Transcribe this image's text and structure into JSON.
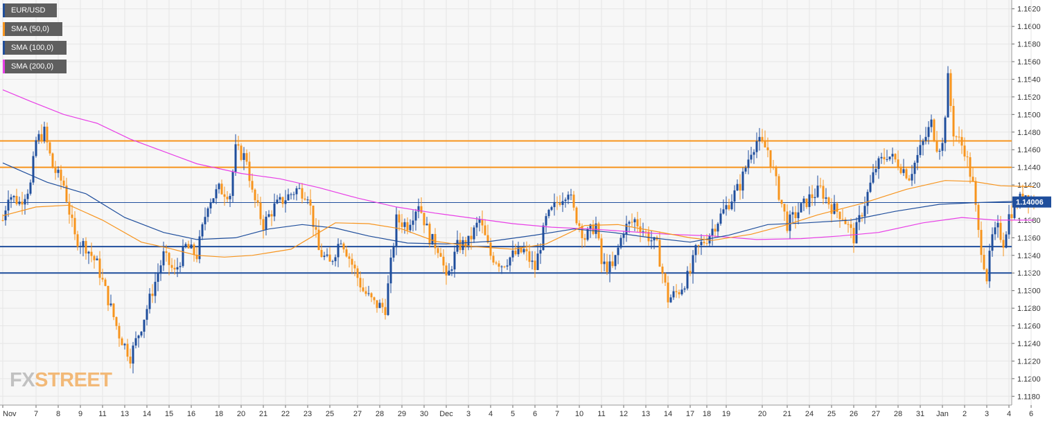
{
  "colors": {
    "bull": "#1f4e9c",
    "bear": "#f7941d",
    "sma50": "#f7941d",
    "sma100": "#1f4e9c",
    "sma200": "#e83ee6",
    "resistance": "#f7941d",
    "support": "#1f4e9c",
    "grid": "#e6e6e6",
    "background": "#f7f7f7",
    "price_label_bg": "#1f4e9c"
  },
  "legend": [
    {
      "label": "EUR/USD",
      "color": "#1f4e9c"
    },
    {
      "label": "SMA (50,0)",
      "color": "#f7941d"
    },
    {
      "label": "SMA (100,0)",
      "color": "#1f4e9c"
    },
    {
      "label": "SMA (200,0)",
      "color": "#e83ee6"
    }
  ],
  "watermark": {
    "fx": "FX",
    "street": "STREET"
  },
  "chart_data": {
    "type": "candlestick",
    "symbol": "EUR/USD",
    "title": "",
    "xlabel": "",
    "ylabel": "",
    "ylim": [
      1.117,
      1.163
    ],
    "y_ticks": [
      "1.1180",
      "1.1200",
      "1.1220",
      "1.1240",
      "1.1260",
      "1.1280",
      "1.1300",
      "1.1320",
      "1.1340",
      "1.1360",
      "1.1380",
      "1.1400",
      "1.1420",
      "1.1440",
      "1.1460",
      "1.1480",
      "1.1500",
      "1.1520",
      "1.1540",
      "1.1560",
      "1.1580",
      "1.1600",
      "1.1620"
    ],
    "x_ticks": [
      "Nov",
      "7",
      "8",
      "9",
      "11",
      "13",
      "14",
      "15",
      "16",
      "18",
      "20",
      "21",
      "22",
      "23",
      "25",
      "27",
      "28",
      "29",
      "30",
      "Dec",
      "3",
      "4",
      "5",
      "6",
      "7",
      "10",
      "11",
      "12",
      "13",
      "14",
      "17",
      "18",
      "19",
      "20",
      "21",
      "24",
      "25",
      "26",
      "27",
      "28",
      "31",
      "Jan",
      "2",
      "3",
      "4",
      "6"
    ],
    "x_tick_slots": [
      0,
      12,
      20,
      28,
      36,
      44,
      52,
      60,
      68,
      78,
      86,
      94,
      102,
      110,
      118,
      128,
      136,
      144,
      152,
      160,
      168,
      176,
      184,
      192,
      200,
      208,
      216,
      224,
      232,
      240,
      248,
      254,
      261,
      274,
      283,
      291,
      299,
      307,
      315,
      323,
      331,
      339,
      347,
      355,
      363,
      371
    ],
    "current_price": "1.14006",
    "current_price_value": 1.14006,
    "horizontal_levels": [
      {
        "kind": "resistance",
        "value": 1.147
      },
      {
        "kind": "resistance",
        "value": 1.144
      },
      {
        "kind": "current",
        "value": 1.14
      },
      {
        "kind": "support",
        "value": 1.135
      },
      {
        "kind": "support",
        "value": 1.132
      }
    ],
    "price_path": [
      [
        0,
        1.138
      ],
      [
        2,
        1.141
      ],
      [
        6,
        1.14
      ],
      [
        10,
        1.142
      ],
      [
        12,
        1.147
      ],
      [
        15,
        1.148
      ],
      [
        18,
        1.144
      ],
      [
        22,
        1.142
      ],
      [
        26,
        1.136
      ],
      [
        30,
        1.135
      ],
      [
        34,
        1.133
      ],
      [
        38,
        1.129
      ],
      [
        42,
        1.125
      ],
      [
        46,
        1.1225
      ],
      [
        50,
        1.126
      ],
      [
        54,
        1.13
      ],
      [
        58,
        1.134
      ],
      [
        62,
        1.132
      ],
      [
        66,
        1.135
      ],
      [
        70,
        1.134
      ],
      [
        74,
        1.14
      ],
      [
        78,
        1.1415
      ],
      [
        82,
        1.141
      ],
      [
        84,
        1.146
      ],
      [
        88,
        1.145
      ],
      [
        90,
        1.141
      ],
      [
        94,
        1.1375
      ],
      [
        98,
        1.1395
      ],
      [
        102,
        1.1405
      ],
      [
        106,
        1.1415
      ],
      [
        110,
        1.141
      ],
      [
        114,
        1.1345
      ],
      [
        118,
        1.133
      ],
      [
        122,
        1.136
      ],
      [
        126,
        1.133
      ],
      [
        130,
        1.13
      ],
      [
        134,
        1.1285
      ],
      [
        138,
        1.128
      ],
      [
        142,
        1.138
      ],
      [
        146,
        1.1375
      ],
      [
        150,
        1.14
      ],
      [
        154,
        1.136
      ],
      [
        158,
        1.1345
      ],
      [
        160,
        1.131
      ],
      [
        164,
        1.135
      ],
      [
        168,
        1.1355
      ],
      [
        172,
        1.138
      ],
      [
        176,
        1.134
      ],
      [
        180,
        1.133
      ],
      [
        184,
        1.134
      ],
      [
        188,
        1.1345
      ],
      [
        192,
        1.1325
      ],
      [
        196,
        1.138
      ],
      [
        200,
        1.14
      ],
      [
        204,
        1.1415
      ],
      [
        206,
        1.139
      ],
      [
        210,
        1.136
      ],
      [
        214,
        1.1375
      ],
      [
        216,
        1.133
      ],
      [
        220,
        1.1325
      ],
      [
        224,
        1.137
      ],
      [
        228,
        1.138
      ],
      [
        232,
        1.1365
      ],
      [
        236,
        1.135
      ],
      [
        240,
        1.129
      ],
      [
        244,
        1.13
      ],
      [
        248,
        1.132
      ],
      [
        250,
        1.1345
      ],
      [
        254,
        1.136
      ],
      [
        258,
        1.138
      ],
      [
        262,
        1.14
      ],
      [
        266,
        1.142
      ],
      [
        270,
        1.146
      ],
      [
        272,
        1.147
      ],
      [
        276,
        1.146
      ],
      [
        280,
        1.141
      ],
      [
        283,
        1.1375
      ],
      [
        287,
        1.139
      ],
      [
        291,
        1.1405
      ],
      [
        295,
        1.1415
      ],
      [
        299,
        1.1395
      ],
      [
        303,
        1.1385
      ],
      [
        307,
        1.136
      ],
      [
        311,
        1.14
      ],
      [
        315,
        1.144
      ],
      [
        319,
        1.1455
      ],
      [
        323,
        1.1445
      ],
      [
        327,
        1.143
      ],
      [
        331,
        1.146
      ],
      [
        335,
        1.149
      ],
      [
        337,
        1.1465
      ],
      [
        339,
        1.1465
      ],
      [
        341,
        1.154
      ],
      [
        343,
        1.148
      ],
      [
        347,
        1.146
      ],
      [
        350,
        1.142
      ],
      [
        352,
        1.1365
      ],
      [
        355,
        1.1315
      ],
      [
        357,
        1.136
      ],
      [
        359,
        1.137
      ],
      [
        361,
        1.1355
      ],
      [
        363,
        1.1385
      ],
      [
        366,
        1.14
      ],
      [
        369,
        1.141
      ],
      [
        372,
        1.14
      ]
    ],
    "sma50": [
      [
        0,
        1.1385
      ],
      [
        12,
        1.1395
      ],
      [
        24,
        1.1397
      ],
      [
        36,
        1.138
      ],
      [
        50,
        1.1355
      ],
      [
        60,
        1.1348
      ],
      [
        70,
        1.134
      ],
      [
        80,
        1.1338
      ],
      [
        90,
        1.134
      ],
      [
        104,
        1.1347
      ],
      [
        112,
        1.1362
      ],
      [
        120,
        1.1377
      ],
      [
        132,
        1.1376
      ],
      [
        144,
        1.137
      ],
      [
        156,
        1.1356
      ],
      [
        170,
        1.135
      ],
      [
        184,
        1.1347
      ],
      [
        196,
        1.1353
      ],
      [
        210,
        1.1374
      ],
      [
        222,
        1.1375
      ],
      [
        236,
        1.1367
      ],
      [
        248,
        1.136
      ],
      [
        256,
        1.1357
      ],
      [
        270,
        1.1364
      ],
      [
        282,
        1.1374
      ],
      [
        294,
        1.1386
      ],
      [
        310,
        1.1399
      ],
      [
        326,
        1.1415
      ],
      [
        340,
        1.1425
      ],
      [
        350,
        1.1424
      ],
      [
        360,
        1.1419
      ],
      [
        372,
        1.1418
      ]
    ],
    "sma100": [
      [
        0,
        1.1445
      ],
      [
        16,
        1.1423
      ],
      [
        30,
        1.141
      ],
      [
        44,
        1.1383
      ],
      [
        58,
        1.1366
      ],
      [
        70,
        1.1358
      ],
      [
        84,
        1.136
      ],
      [
        96,
        1.137
      ],
      [
        108,
        1.1375
      ],
      [
        120,
        1.1371
      ],
      [
        132,
        1.1362
      ],
      [
        146,
        1.1354
      ],
      [
        160,
        1.1353
      ],
      [
        176,
        1.1356
      ],
      [
        192,
        1.1363
      ],
      [
        206,
        1.137
      ],
      [
        220,
        1.1366
      ],
      [
        234,
        1.136
      ],
      [
        248,
        1.1355
      ],
      [
        262,
        1.1363
      ],
      [
        276,
        1.1375
      ],
      [
        290,
        1.1377
      ],
      [
        306,
        1.138
      ],
      [
        322,
        1.139
      ],
      [
        338,
        1.1398
      ],
      [
        352,
        1.14
      ],
      [
        372,
        1.1402
      ]
    ],
    "sma200": [
      [
        0,
        1.1528
      ],
      [
        10,
        1.1515
      ],
      [
        22,
        1.15
      ],
      [
        34,
        1.149
      ],
      [
        46,
        1.1472
      ],
      [
        58,
        1.1458
      ],
      [
        70,
        1.1444
      ],
      [
        86,
        1.1433
      ],
      [
        100,
        1.1427
      ],
      [
        114,
        1.1417
      ],
      [
        128,
        1.1405
      ],
      [
        142,
        1.1395
      ],
      [
        156,
        1.1388
      ],
      [
        170,
        1.1382
      ],
      [
        184,
        1.1376
      ],
      [
        198,
        1.1372
      ],
      [
        212,
        1.137
      ],
      [
        226,
        1.1367
      ],
      [
        240,
        1.1364
      ],
      [
        256,
        1.1362
      ],
      [
        272,
        1.1358
      ],
      [
        288,
        1.1359
      ],
      [
        302,
        1.1362
      ],
      [
        316,
        1.1366
      ],
      [
        332,
        1.1377
      ],
      [
        346,
        1.1383
      ],
      [
        358,
        1.138
      ],
      [
        372,
        1.138
      ]
    ]
  }
}
